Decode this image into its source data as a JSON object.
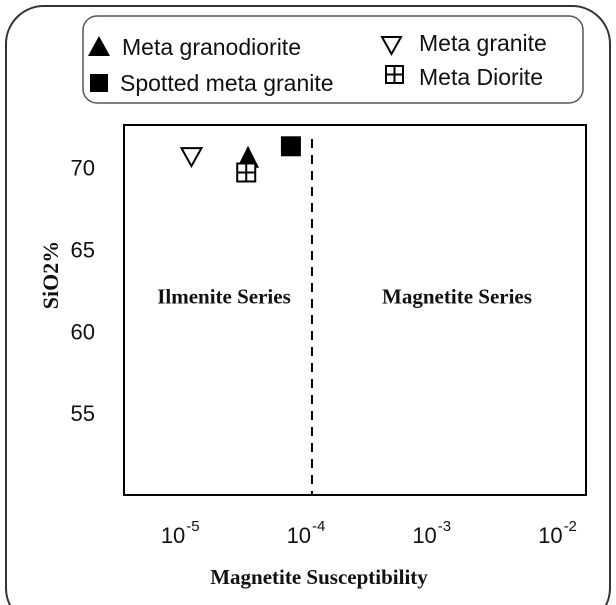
{
  "chart_data": {
    "type": "scatter",
    "xlabel": "Magnetite Susceptibility",
    "ylabel": "SiO2%",
    "x_scale": "log",
    "xlim": [
      3.2e-06,
      0.0151
    ],
    "ylim": [
      50,
      72.6
    ],
    "x_ticks": [
      {
        "value": 1e-05,
        "base": "10",
        "exp": "-5"
      },
      {
        "value": 0.0001,
        "base": "10",
        "exp": "-4"
      },
      {
        "value": 0.001,
        "base": "10",
        "exp": "-3"
      },
      {
        "value": 0.01,
        "base": "10",
        "exp": "-2"
      }
    ],
    "y_ticks": [
      55,
      60,
      65,
      70
    ],
    "grid": false,
    "legend_position": "top",
    "divider": {
      "x": 0.0001,
      "style": "dashed"
    },
    "regions": [
      {
        "label": "Ilmenite Series",
        "side": "left",
        "y": 61.7
      },
      {
        "label": "Magnetite Series",
        "side": "right",
        "y": 61.7
      }
    ],
    "series": [
      {
        "name": "Meta granodiorite",
        "marker": "triangle-up-filled",
        "points": [
          {
            "x": 3.1e-05,
            "y": 70.6
          }
        ]
      },
      {
        "name": "Meta granite",
        "marker": "triangle-down-open",
        "points": [
          {
            "x": 1.1e-05,
            "y": 70.7
          }
        ]
      },
      {
        "name": "Spotted meta granite",
        "marker": "square-filled",
        "points": [
          {
            "x": 6.8e-05,
            "y": 71.3
          }
        ]
      },
      {
        "name": "Meta Diorite",
        "marker": "square-cross-open",
        "points": [
          {
            "x": 3e-05,
            "y": 69.7
          }
        ]
      }
    ]
  }
}
